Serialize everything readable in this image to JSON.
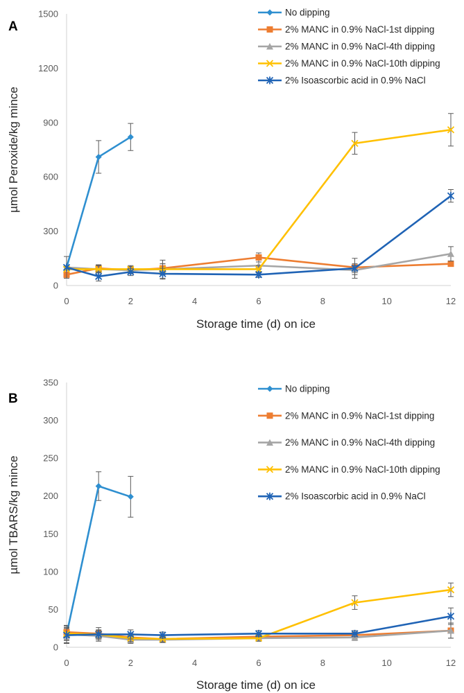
{
  "chart_data": [
    {
      "type": "line",
      "panel_label": "A",
      "ylabel": "µmol Peroxide/kg mince",
      "xlabel": "Storage time (d) on ice",
      "xlim": [
        0,
        12
      ],
      "ylim": [
        0,
        1500
      ],
      "x_ticks": [
        0,
        2,
        4,
        6,
        8,
        10,
        12
      ],
      "y_ticks": [
        0,
        300,
        600,
        900,
        1200,
        1500
      ],
      "grid": false,
      "legend_position": "top-right",
      "series": [
        {
          "name": "No dipping",
          "color": "#2E8FD0",
          "marker": "diamond",
          "x": [
            0,
            1,
            2
          ],
          "y": [
            100,
            710,
            820
          ],
          "err": [
            0,
            90,
            75
          ]
        },
        {
          "name": "2% MANC in 0.9% NaCl-1st dipping",
          "color": "#ED7D31",
          "marker": "square",
          "x": [
            0,
            1,
            2,
            3,
            6,
            9,
            12
          ],
          "y": [
            60,
            95,
            85,
            95,
            155,
            100,
            120
          ],
          "err": [
            0,
            20,
            15,
            25,
            25,
            20,
            15
          ]
        },
        {
          "name": "2% MANC in 0.9% NaCl-4th dipping",
          "color": "#A5A5A5",
          "marker": "triangle",
          "x": [
            0,
            1,
            2,
            3,
            6,
            9,
            12
          ],
          "y": [
            100,
            90,
            85,
            90,
            110,
            85,
            175
          ],
          "err": [
            0,
            20,
            20,
            30,
            20,
            25,
            40
          ]
        },
        {
          "name": "2% MANC in 0.9% NaCl-10th dipping",
          "color": "#FFC000",
          "marker": "x",
          "x": [
            0,
            1,
            2,
            3,
            6,
            9,
            12
          ],
          "y": [
            90,
            90,
            90,
            90,
            90,
            785,
            860
          ],
          "err": [
            0,
            20,
            20,
            50,
            20,
            60,
            90
          ]
        },
        {
          "name": "2% Isoascorbic acid in 0.9% NaCl",
          "color": "#1F63B5",
          "marker": "star",
          "x": [
            0,
            1,
            2,
            3,
            6,
            9,
            12
          ],
          "y": [
            100,
            50,
            75,
            65,
            60,
            95,
            495
          ],
          "err": [
            60,
            25,
            20,
            30,
            15,
            55,
            35
          ]
        }
      ]
    },
    {
      "type": "line",
      "panel_label": "B",
      "ylabel": "µmol TBARS/kg mince",
      "xlabel": "Storage time (d) on ice",
      "xlim": [
        0,
        12
      ],
      "ylim": [
        0,
        350
      ],
      "x_ticks": [
        0,
        2,
        4,
        6,
        8,
        10,
        12
      ],
      "y_ticks": [
        0,
        50,
        100,
        150,
        200,
        250,
        300,
        350
      ],
      "grid": false,
      "legend_position": "top-right",
      "series": [
        {
          "name": "No dipping",
          "color": "#2E8FD0",
          "marker": "diamond",
          "x": [
            0,
            1,
            2
          ],
          "y": [
            17,
            213,
            199
          ],
          "err": [
            12,
            19,
            27
          ]
        },
        {
          "name": "2% MANC in 0.9% NaCl-1st dipping",
          "color": "#ED7D31",
          "marker": "square",
          "x": [
            0,
            1,
            2,
            3,
            6,
            9,
            12
          ],
          "y": [
            20,
            18,
            13,
            11,
            14,
            16,
            22
          ],
          "err": [
            8,
            5,
            5,
            4,
            4,
            4,
            10
          ]
        },
        {
          "name": "2% MANC in 0.9% NaCl-4th dipping",
          "color": "#A5A5A5",
          "marker": "triangle",
          "x": [
            0,
            1,
            2,
            3,
            6,
            9,
            12
          ],
          "y": [
            17,
            15,
            10,
            10,
            12,
            13,
            22
          ],
          "err": [
            8,
            5,
            5,
            4,
            4,
            4,
            10
          ]
        },
        {
          "name": "2% MANC in 0.9% NaCl-10th dipping",
          "color": "#FFC000",
          "marker": "x",
          "x": [
            0,
            1,
            2,
            3,
            6,
            9,
            12
          ],
          "y": [
            18,
            17,
            12,
            11,
            12,
            59,
            76
          ],
          "err": [
            8,
            5,
            5,
            4,
            4,
            9,
            9
          ]
        },
        {
          "name": "2% Isoascorbic acid in 0.9% NaCl",
          "color": "#1F63B5",
          "marker": "star",
          "x": [
            0,
            1,
            2,
            3,
            6,
            9,
            12
          ],
          "y": [
            16,
            17,
            17,
            16,
            18,
            18,
            41
          ],
          "err": [
            10,
            9,
            6,
            4,
            4,
            4,
            11
          ]
        }
      ]
    }
  ]
}
